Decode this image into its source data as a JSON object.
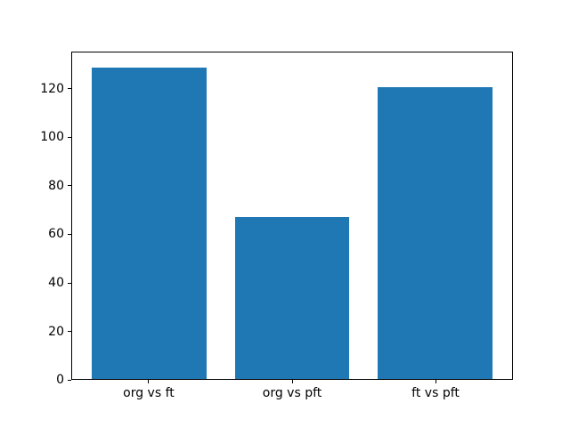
{
  "chart_data": {
    "type": "bar",
    "categories": [
      "org vs ft",
      "org vs pft",
      "ft vs pft"
    ],
    "values": [
      129,
      67,
      121
    ],
    "title": "",
    "xlabel": "",
    "ylabel": "",
    "ylim": [
      0,
      135.45
    ],
    "yticks": [
      0,
      20,
      40,
      60,
      80,
      100,
      120
    ],
    "bar_color": "#1f77b4",
    "axes_background": "#ffffff",
    "figure_background": "#ffffff",
    "spine_color": "#000000",
    "grid": false,
    "legend": "none"
  }
}
